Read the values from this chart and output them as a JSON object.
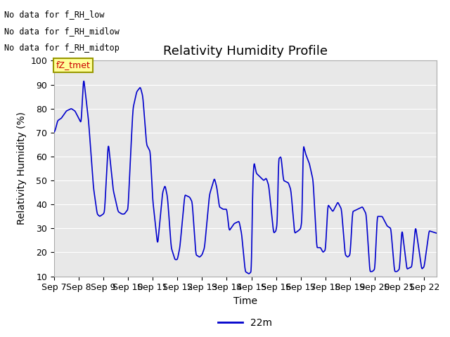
{
  "title": "Relativity Humidity Profile",
  "xlabel": "Time",
  "ylabel": "Relativity Humidity (%)",
  "ylim": [
    10,
    100
  ],
  "xlim": [
    0,
    15.5
  ],
  "line_color": "#0000CC",
  "line_width": 1.2,
  "legend_label": "22m",
  "legend_color": "#0000CC",
  "annotations": [
    "No data for f_RH_low",
    "No data for f̲RH̲midlow",
    "No data for f̲RH̲midtop"
  ],
  "legend_box_label": "fZ_tmet",
  "legend_box_color": "#CC0000",
  "legend_box_bg": "#FFFF99",
  "xtick_labels": [
    "Sep 7",
    "Sep 8",
    "Sep 9",
    "Sep 10",
    "Sep 11",
    "Sep 12",
    "Sep 13",
    "Sep 14",
    "Sep 15",
    "Sep 16",
    "Sep 17",
    "Sep 18",
    "Sep 19",
    "Sep 20",
    "Sep 21",
    "Sep 22"
  ],
  "ytick_labels": [
    "10",
    "20",
    "30",
    "40",
    "50",
    "60",
    "70",
    "80",
    "90",
    "100"
  ],
  "ytick_values": [
    10,
    20,
    30,
    40,
    50,
    60,
    70,
    80,
    90,
    100
  ],
  "grid_color": "#FFFFFF",
  "plot_bg_color": "#E8E8E8",
  "font_size": 9,
  "title_fontsize": 13
}
